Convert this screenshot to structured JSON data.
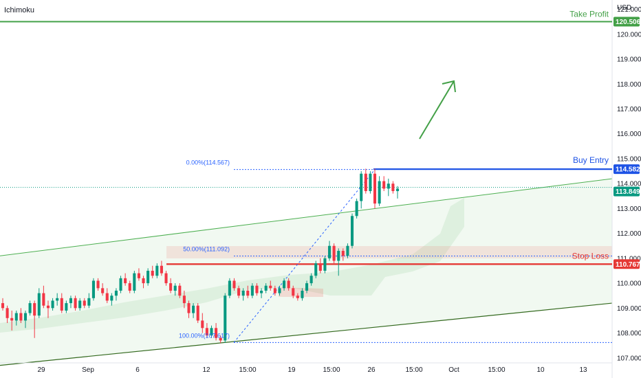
{
  "indicator": "Ichimoku",
  "currency": "USD",
  "chart_data": {
    "type": "candlestick",
    "y_range": [
      106.8,
      121.1
    ],
    "y_ticks": [
      "107.000",
      "108.000",
      "109.000",
      "110.000",
      "111.000",
      "112.000",
      "113.000",
      "114.000",
      "115.000",
      "116.000",
      "117.000",
      "118.000",
      "119.000",
      "120.000",
      "121.000"
    ],
    "x_labels": [
      "29",
      "Sep",
      "6",
      "12",
      "15:00",
      "19",
      "15:00",
      "26",
      "15:00",
      "Oct",
      "15:00",
      "10",
      "13"
    ],
    "levels": {
      "take_profit": {
        "label": "Take Profit",
        "value": 120.506,
        "tag": "120.506",
        "color": "#43a047"
      },
      "buy_entry": {
        "label": "Buy Entry",
        "value": 114.582,
        "tag": "114.582",
        "color": "#1e53e5"
      },
      "stop_loss": {
        "label": "Stop Loss",
        "value": 110.767,
        "tag": "110.767",
        "color": "#e53935"
      },
      "current": {
        "value": 113.849,
        "tag": "113.849",
        "color": "#089981"
      }
    },
    "fib": {
      "top": {
        "label": "0.00%(114.567)",
        "value": 114.567
      },
      "mid": {
        "label": "50.00%(111.092)",
        "value": 111.092
      },
      "bottom": {
        "label": "100.00%(107.617)",
        "value": 107.617
      }
    },
    "channel": {
      "upper_start": 111.1,
      "upper_end": 114.2,
      "lower_start": 106.7,
      "lower_end": 109.2
    },
    "candles": [
      [
        109.2,
        109.4,
        108.9,
        109.0
      ],
      [
        109.0,
        109.1,
        108.4,
        108.6
      ],
      [
        108.6,
        108.9,
        108.1,
        108.5
      ],
      [
        108.5,
        108.9,
        108.3,
        108.8
      ],
      [
        108.8,
        109.0,
        108.4,
        108.5
      ],
      [
        108.5,
        108.9,
        108.2,
        108.8
      ],
      [
        108.8,
        109.3,
        108.7,
        109.2
      ],
      [
        109.2,
        109.3,
        107.8,
        108.7
      ],
      [
        108.7,
        109.8,
        108.6,
        109.6
      ],
      [
        109.6,
        109.9,
        109.0,
        109.1
      ],
      [
        109.1,
        109.3,
        108.6,
        109.0
      ],
      [
        109.0,
        109.4,
        108.9,
        109.3
      ],
      [
        109.3,
        109.6,
        109.1,
        109.4
      ],
      [
        109.4,
        109.6,
        108.8,
        108.9
      ],
      [
        108.9,
        109.3,
        108.8,
        109.2
      ],
      [
        109.2,
        109.5,
        109.0,
        109.4
      ],
      [
        109.4,
        109.5,
        108.9,
        109.0
      ],
      [
        109.0,
        109.4,
        108.9,
        109.3
      ],
      [
        109.3,
        109.4,
        109.0,
        109.1
      ],
      [
        109.1,
        109.6,
        109.0,
        109.4
      ],
      [
        109.4,
        110.2,
        109.3,
        110.1
      ],
      [
        110.1,
        110.2,
        109.7,
        109.8
      ],
      [
        109.8,
        110.0,
        109.5,
        109.6
      ],
      [
        109.6,
        109.8,
        109.2,
        109.3
      ],
      [
        109.3,
        109.6,
        109.1,
        109.5
      ],
      [
        109.5,
        109.8,
        109.3,
        109.7
      ],
      [
        109.7,
        110.3,
        109.6,
        110.2
      ],
      [
        110.2,
        110.4,
        109.9,
        110.0
      ],
      [
        110.0,
        110.1,
        109.6,
        109.7
      ],
      [
        109.7,
        110.5,
        109.6,
        110.4
      ],
      [
        110.4,
        110.6,
        110.1,
        110.2
      ],
      [
        110.2,
        110.3,
        109.8,
        110.0
      ],
      [
        110.0,
        110.6,
        109.9,
        110.5
      ],
      [
        110.5,
        110.7,
        110.2,
        110.3
      ],
      [
        110.3,
        110.8,
        110.2,
        110.7
      ],
      [
        110.7,
        110.9,
        110.3,
        110.4
      ],
      [
        110.4,
        110.5,
        109.9,
        110.0
      ],
      [
        110.0,
        110.2,
        109.6,
        109.7
      ],
      [
        109.7,
        110.0,
        109.5,
        109.9
      ],
      [
        109.9,
        110.0,
        109.4,
        109.5
      ],
      [
        109.5,
        109.7,
        109.0,
        109.2
      ],
      [
        109.2,
        109.3,
        108.6,
        108.8
      ],
      [
        108.8,
        109.2,
        108.6,
        109.1
      ],
      [
        109.1,
        109.2,
        108.4,
        108.5
      ],
      [
        108.5,
        108.8,
        108.0,
        108.2
      ],
      [
        108.2,
        108.4,
        107.8,
        107.9
      ],
      [
        107.9,
        108.3,
        107.8,
        108.2
      ],
      [
        108.2,
        108.4,
        107.7,
        107.8
      ],
      [
        107.8,
        107.9,
        107.6,
        107.7
      ],
      [
        107.7,
        109.6,
        107.6,
        109.5
      ],
      [
        109.5,
        110.2,
        109.4,
        110.1
      ],
      [
        110.1,
        110.2,
        109.7,
        109.8
      ],
      [
        109.8,
        109.9,
        109.4,
        109.5
      ],
      [
        109.5,
        109.8,
        109.3,
        109.7
      ],
      [
        109.7,
        109.9,
        109.4,
        109.5
      ],
      [
        109.5,
        110.0,
        109.4,
        109.9
      ],
      [
        109.9,
        110.0,
        109.5,
        109.6
      ],
      [
        109.6,
        109.8,
        109.4,
        109.7
      ],
      [
        109.7,
        110.0,
        109.6,
        109.9
      ],
      [
        109.9,
        110.1,
        109.7,
        109.8
      ],
      [
        109.8,
        109.9,
        109.5,
        109.6
      ],
      [
        109.6,
        109.9,
        109.5,
        109.8
      ],
      [
        109.8,
        110.2,
        109.7,
        110.1
      ],
      [
        110.1,
        110.2,
        109.7,
        109.8
      ],
      [
        109.8,
        109.9,
        109.4,
        109.5
      ],
      [
        109.5,
        109.6,
        109.3,
        109.4
      ],
      [
        109.4,
        109.8,
        109.3,
        109.7
      ],
      [
        109.7,
        110.1,
        109.6,
        110.0
      ],
      [
        110.0,
        110.4,
        109.9,
        110.3
      ],
      [
        110.3,
        110.9,
        110.2,
        110.8
      ],
      [
        110.8,
        111.0,
        110.4,
        110.5
      ],
      [
        110.5,
        111.1,
        110.4,
        111.0
      ],
      [
        111.0,
        111.7,
        110.9,
        111.5
      ],
      [
        111.5,
        111.6,
        110.8,
        110.9
      ],
      [
        110.9,
        111.4,
        110.3,
        111.3
      ],
      [
        111.3,
        111.4,
        110.9,
        111.1
      ],
      [
        111.1,
        111.6,
        111.0,
        111.5
      ],
      [
        111.5,
        112.8,
        111.4,
        112.7
      ],
      [
        112.7,
        113.4,
        112.6,
        113.3
      ],
      [
        113.3,
        114.5,
        113.0,
        114.4
      ],
      [
        114.4,
        114.6,
        113.6,
        113.7
      ],
      [
        113.7,
        114.5,
        113.6,
        114.4
      ],
      [
        114.4,
        114.6,
        113.0,
        113.2
      ],
      [
        113.2,
        114.3,
        113.1,
        114.1
      ],
      [
        114.1,
        114.3,
        113.7,
        113.8
      ],
      [
        113.8,
        114.2,
        113.5,
        114.0
      ],
      [
        114.0,
        114.1,
        113.6,
        113.7
      ],
      [
        113.7,
        113.9,
        113.4,
        113.8
      ]
    ]
  }
}
